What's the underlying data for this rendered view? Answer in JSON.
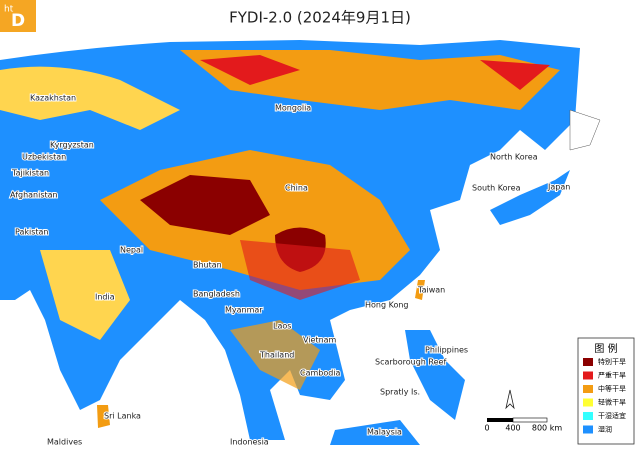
{
  "logo": {
    "small": "ht",
    "big": "D"
  },
  "title": "FYDI-2.0 (2024年9月1日)",
  "labels": [
    "Kazakhstan",
    "Mongolia",
    "Kyrgyzstan",
    "Uzbekistan",
    "Tajikistan",
    "Afghanistan",
    "China",
    "North Korea",
    "South Korea",
    "Japan",
    "Pakistan",
    "Nepal",
    "Bhutan",
    "Bangladesh",
    "India",
    "Myanmar",
    "Hong Kong",
    "Taiwan",
    "Laos",
    "Vietnam",
    "Thailand",
    "Cambodia",
    "Scarborough Reef",
    "Philippines",
    "Spratly Is.",
    "Sri Lanka",
    "Maldives",
    "Malaysia",
    "Indonesia"
  ],
  "legend": {
    "title": "图  例",
    "items": [
      {
        "name": "特别干旱",
        "color": "#8b0000"
      },
      {
        "name": "严重干旱",
        "color": "#e31a1c"
      },
      {
        "name": "中等干旱",
        "color": "#f39c12"
      },
      {
        "name": "轻微干旱",
        "color": "#ffff33"
      },
      {
        "name": "干湿适宜",
        "color": "#33ffff"
      },
      {
        "name": "湿润",
        "color": "#1e90ff"
      }
    ]
  },
  "scale": {
    "labels": [
      "0",
      "400",
      "800 km"
    ]
  }
}
